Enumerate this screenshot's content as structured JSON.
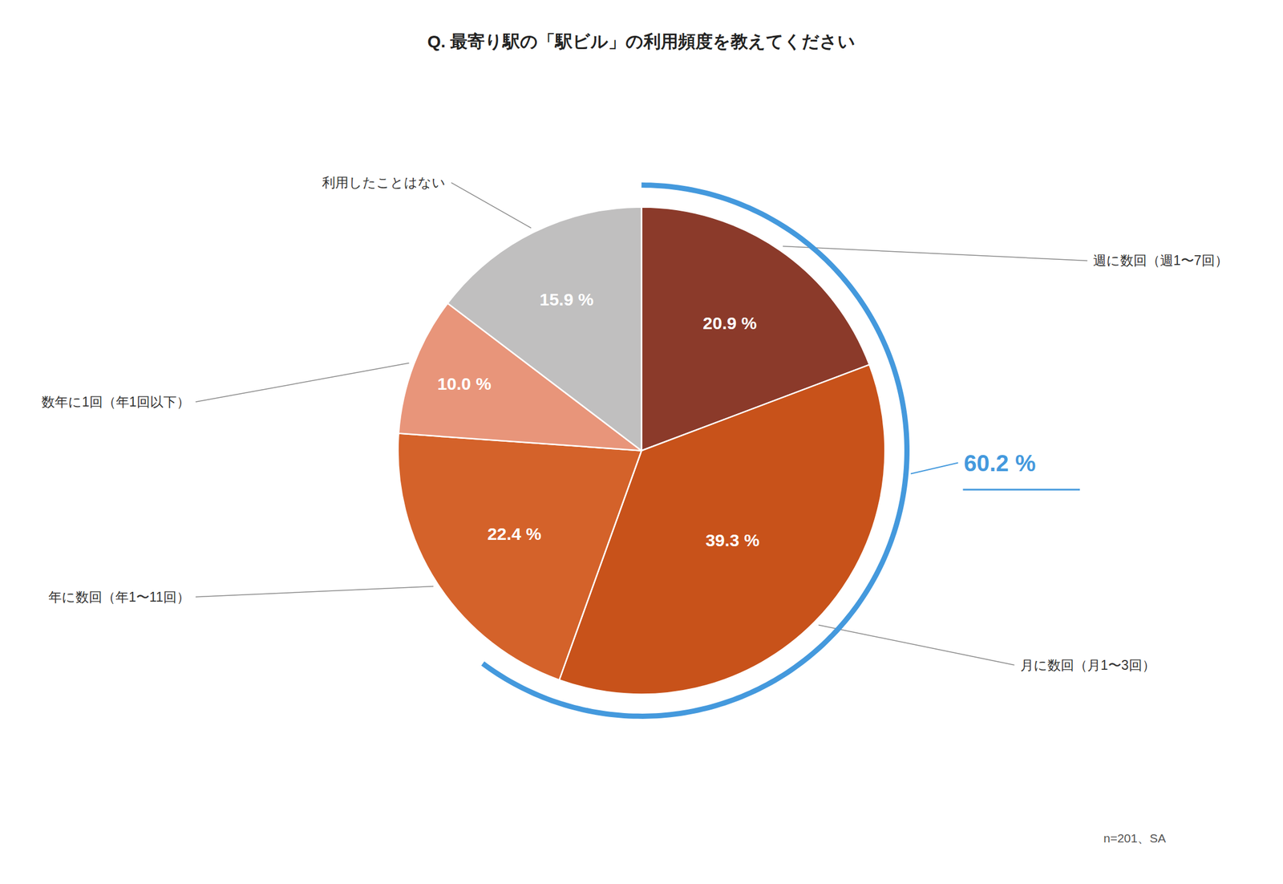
{
  "chart_data": {
    "type": "pie",
    "title": "Q. 最寄り駅の「駅ビル」の利用頻度を教えてください",
    "categories": [
      "週に数回（週1〜7回）",
      "月に数回（月1〜3回）",
      "年に数回（年1〜11回）",
      "数年に1回（年1回以下）",
      "利用したことはない"
    ],
    "values": [
      20.9,
      39.3,
      22.4,
      10.0,
      15.9
    ],
    "value_labels": [
      "20.9 %",
      "39.3 %",
      "22.4 %",
      "10.0 %",
      "15.9 %"
    ],
    "colors": [
      "#8B3A2A",
      "#C8521A",
      "#D4622A",
      "#E8957A",
      "#C0BFBF"
    ],
    "data_labels": true,
    "annotations": [
      {
        "text": "60.2 %",
        "value": 60.2,
        "color": "#4499DD"
      },
      {
        "text": "n=201、SA"
      }
    ]
  }
}
